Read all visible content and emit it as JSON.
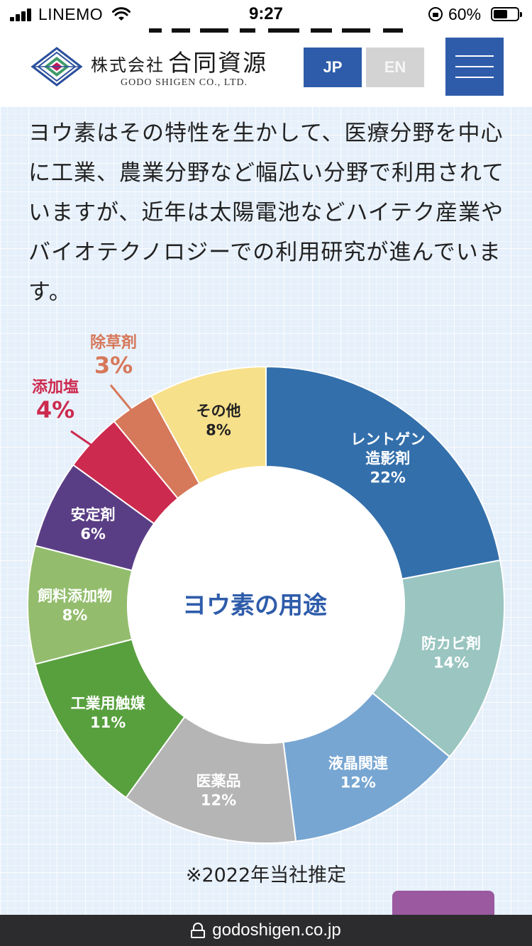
{
  "status_bar": {
    "carrier": "LINEMO",
    "time": "9:27",
    "battery": "60%",
    "battery_level": 0.6
  },
  "header": {
    "logo_company_ja_small": "株式会社",
    "logo_company_ja_big": "合同資源",
    "logo_company_en": "GODO SHIGEN CO., LTD.",
    "lang_jp": "JP",
    "lang_en": "EN"
  },
  "description": "ヨウ素はその特性を生かして、医療分野を中心に工業、農業分野など幅広い分野で利用されていますが、近年は太陽電池などハイテク産業やバイオテクノロジーでの利用研究が進んでいます。",
  "chart_data": {
    "type": "pie",
    "title": "ヨウ素の用途",
    "unit": "%",
    "donut": true,
    "slices": [
      {
        "label": "レントゲン造影剤",
        "label_lines": [
          "レントゲン",
          "造影剤"
        ],
        "value": 22,
        "display": "22%",
        "color": "#336fab",
        "label_color": "#ffffff"
      },
      {
        "label": "防カビ剤",
        "label_lines": [
          "防カビ剤"
        ],
        "value": 14,
        "display": "14%",
        "color": "#9ac5c1",
        "label_color": "#ffffff"
      },
      {
        "label": "液晶関連",
        "label_lines": [
          "液晶関連"
        ],
        "value": 12,
        "display": "12%",
        "color": "#77a6d2",
        "label_color": "#ffffff"
      },
      {
        "label": "医薬品",
        "label_lines": [
          "医薬品"
        ],
        "value": 12,
        "display": "12%",
        "color": "#b5b5b5",
        "label_color": "#ffffff"
      },
      {
        "label": "工業用触媒",
        "label_lines": [
          "工業用触媒"
        ],
        "value": 11,
        "display": "11%",
        "color": "#58a03e",
        "label_color": "#ffffff"
      },
      {
        "label": "飼料添加物",
        "label_lines": [
          "飼料添加物"
        ],
        "value": 8,
        "display": "8%",
        "color": "#93bd6d",
        "label_color": "#ffffff"
      },
      {
        "label": "安定剤",
        "label_lines": [
          "安定剤"
        ],
        "value": 6,
        "display": "6%",
        "color": "#5a3e85",
        "label_color": "#ffffff"
      },
      {
        "label": "添加塩",
        "label_lines": [
          "添加塩"
        ],
        "value": 4,
        "display": "4%",
        "color": "#cc2a4e",
        "label_color": "#cc2a4e",
        "callout": true
      },
      {
        "label": "除草剤",
        "label_lines": [
          "除草剤"
        ],
        "value": 3,
        "display": "3%",
        "color": "#d6785a",
        "label_color": "#d6785a",
        "callout": true
      },
      {
        "label": "その他",
        "label_lines": [
          "その他"
        ],
        "value": 8,
        "display": "8%",
        "color": "#f7e08a",
        "label_color": "#222222"
      }
    ],
    "center_label_color": "#2e5caa",
    "note": "※2022年当社推定"
  },
  "url_bar": {
    "url": "godoshigen.co.jp"
  }
}
